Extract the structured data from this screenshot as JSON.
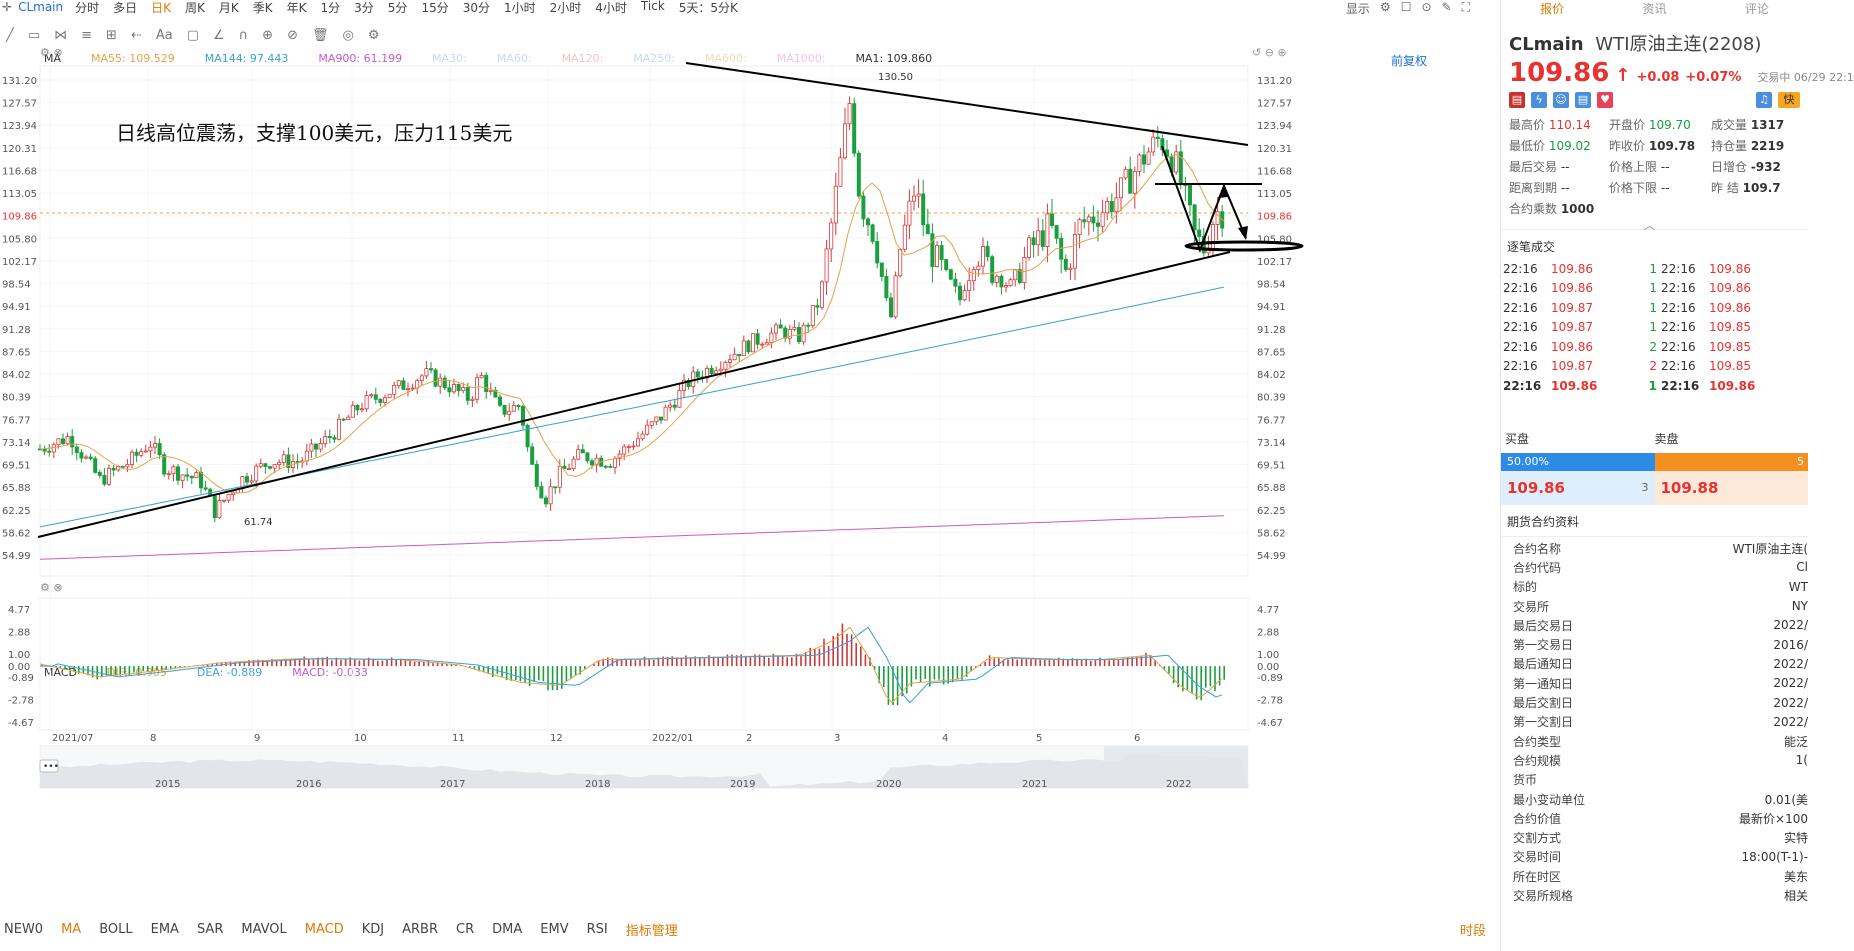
{
  "topbar": {
    "symbol": "CLmain",
    "timeframes": [
      "分时",
      "多日",
      "日K",
      "周K",
      "月K",
      "季K",
      "年K",
      "1分",
      "3分",
      "5分",
      "15分",
      "30分",
      "1小时",
      "2小时",
      "4小时",
      "Tick",
      "5天：5分K"
    ],
    "active_timeframe": "日K",
    "display_label": "显示"
  },
  "chart": {
    "annotation": "日线高位震荡，支撑100美元，压力115美元",
    "adjust_label": "前复权",
    "ma_legend": [
      {
        "label": "MA",
        "color": "#333333"
      },
      {
        "label": "MA55: 109.529",
        "color": "#e8a14a"
      },
      {
        "label": "MA144: 97.443",
        "color": "#3aa0d8"
      },
      {
        "label": "MA900: 61.199",
        "color": "#c85ac8"
      },
      {
        "label": "MA30:",
        "color": "#c9d9ef"
      },
      {
        "label": "MA60:",
        "color": "#c9d9ef"
      },
      {
        "label": "MA120:",
        "color": "#f4c4c4"
      },
      {
        "label": "MA250:",
        "color": "#c9d9ef"
      },
      {
        "label": "MA600:",
        "color": "#f4dcb0"
      },
      {
        "label": "MA1000:",
        "color": "#f4c4e4"
      },
      {
        "label": "MA1: 109.860",
        "color": "#333333"
      }
    ],
    "macd_legend": [
      {
        "label": "MACD",
        "color": "#333333"
      },
      {
        "label": "DIF: -0.905",
        "color": "#e8a14a"
      },
      {
        "label": "DEA: -0.889",
        "color": "#3aa0d8"
      },
      {
        "label": "MACD: -0.033",
        "color": "#c85ac8"
      }
    ],
    "price_ticks": [
      "131.20",
      "127.57",
      "123.94",
      "120.31",
      "116.68",
      "113.05",
      "109.86",
      "105.80",
      "102.17",
      "98.54",
      "94.91",
      "91.28",
      "87.65",
      "84.02",
      "80.39",
      "76.77",
      "73.14",
      "69.51",
      "65.88",
      "62.25",
      "58.62",
      "54.99"
    ],
    "current_price": "109.86",
    "high_label": "130.50",
    "low_label": "61.74",
    "macd_ticks": [
      "4.77",
      "2.88",
      "1.00",
      "0.00",
      "-0.89",
      "-2.78",
      "-4.67"
    ],
    "date_ticks": [
      "2021/07",
      "8",
      "9",
      "10",
      "11",
      "12",
      "2022/01",
      "2",
      "3",
      "4",
      "5",
      "6"
    ],
    "overview_years": [
      "2015",
      "2016",
      "2017",
      "2018",
      "2019",
      "2020",
      "2021",
      "2022"
    ]
  },
  "indicator_tabs": [
    "NEW0",
    "MA",
    "BOLL",
    "EMA",
    "SAR",
    "MAVOL",
    "MACD",
    "KDJ",
    "ARBR",
    "CR",
    "DMA",
    "EMV",
    "RSI",
    "指标管理"
  ],
  "indicator_active": [
    "MA",
    "MACD"
  ],
  "timezone_label": "时段",
  "side": {
    "tabs": [
      "报价",
      "资讯",
      "评论"
    ],
    "code": "CLmain",
    "name": "WTI原油主连(2208)",
    "price": "109.86",
    "change": "+0.08",
    "change_pct": "+0.07%",
    "status": "交易中 06/29 22:1",
    "kuai": "快",
    "stats": [
      [
        "最高价",
        "110.14",
        "up"
      ],
      [
        "开盘价",
        "109.70",
        "dn"
      ],
      [
        "成交量",
        "1317",
        "blk"
      ],
      [
        "最低价",
        "109.02",
        "dn"
      ],
      [
        "昨收价",
        "109.78",
        "blk"
      ],
      [
        "持仓量",
        "2219",
        "blk"
      ],
      [
        "最后交易",
        "--",
        ""
      ],
      [
        "价格上限",
        "--",
        ""
      ],
      [
        "日增仓",
        "-932",
        "blk"
      ],
      [
        "距离到期",
        "--",
        ""
      ],
      [
        "价格下限",
        "--",
        ""
      ],
      [
        "昨  结",
        "109.7",
        "blk"
      ],
      [
        "合约乘数",
        "1000",
        "blk"
      ]
    ],
    "trades_title": "逐笔成交",
    "trades": [
      [
        "22:16",
        "109.86",
        "1",
        "22:16",
        "109.86"
      ],
      [
        "22:16",
        "109.86",
        "1",
        "22:16",
        "109.86"
      ],
      [
        "22:16",
        "109.87",
        "1",
        "22:16",
        "109.86"
      ],
      [
        "22:16",
        "109.87",
        "1",
        "22:16",
        "109.85"
      ],
      [
        "22:16",
        "109.86",
        "2",
        "22:16",
        "109.85"
      ],
      [
        "22:16",
        "109.87",
        "2",
        "22:16",
        "109.85"
      ],
      [
        "22:16",
        "109.86",
        "1",
        "22:16",
        "109.86"
      ]
    ],
    "bid_label": "买盘",
    "ask_label": "卖盘",
    "bid_pct": "50.00%",
    "ask_pct": "5",
    "bid_price": "109.86",
    "bid_qty": "3",
    "ask_price": "109.88",
    "info_title": "期货合约资料",
    "info": [
      [
        "合约名称",
        "WTI原油主连("
      ],
      [
        "合约代码",
        "Cl"
      ],
      [
        "标的",
        "WT"
      ],
      [
        "交易所",
        "NY"
      ],
      [
        "最后交易日",
        "2022/"
      ],
      [
        "第一交易日",
        "2016/"
      ],
      [
        "最后通知日",
        "2022/"
      ],
      [
        "第一通知日",
        "2022/"
      ],
      [
        "最后交割日",
        "2022/"
      ],
      [
        "第一交割日",
        "2022/"
      ],
      [
        "合约类型",
        "能泛"
      ],
      [
        "合约规模",
        "1("
      ],
      [
        "货币",
        ""
      ],
      [
        "最小变动单位",
        "0.01(美"
      ],
      [
        "合约价值",
        "最新价×100"
      ],
      [
        "交割方式",
        "实特"
      ],
      [
        "交易时间",
        "18:00(T-1)-"
      ],
      [
        "所在时区",
        "美东"
      ],
      [
        "交易所规格",
        "相关"
      ]
    ]
  }
}
